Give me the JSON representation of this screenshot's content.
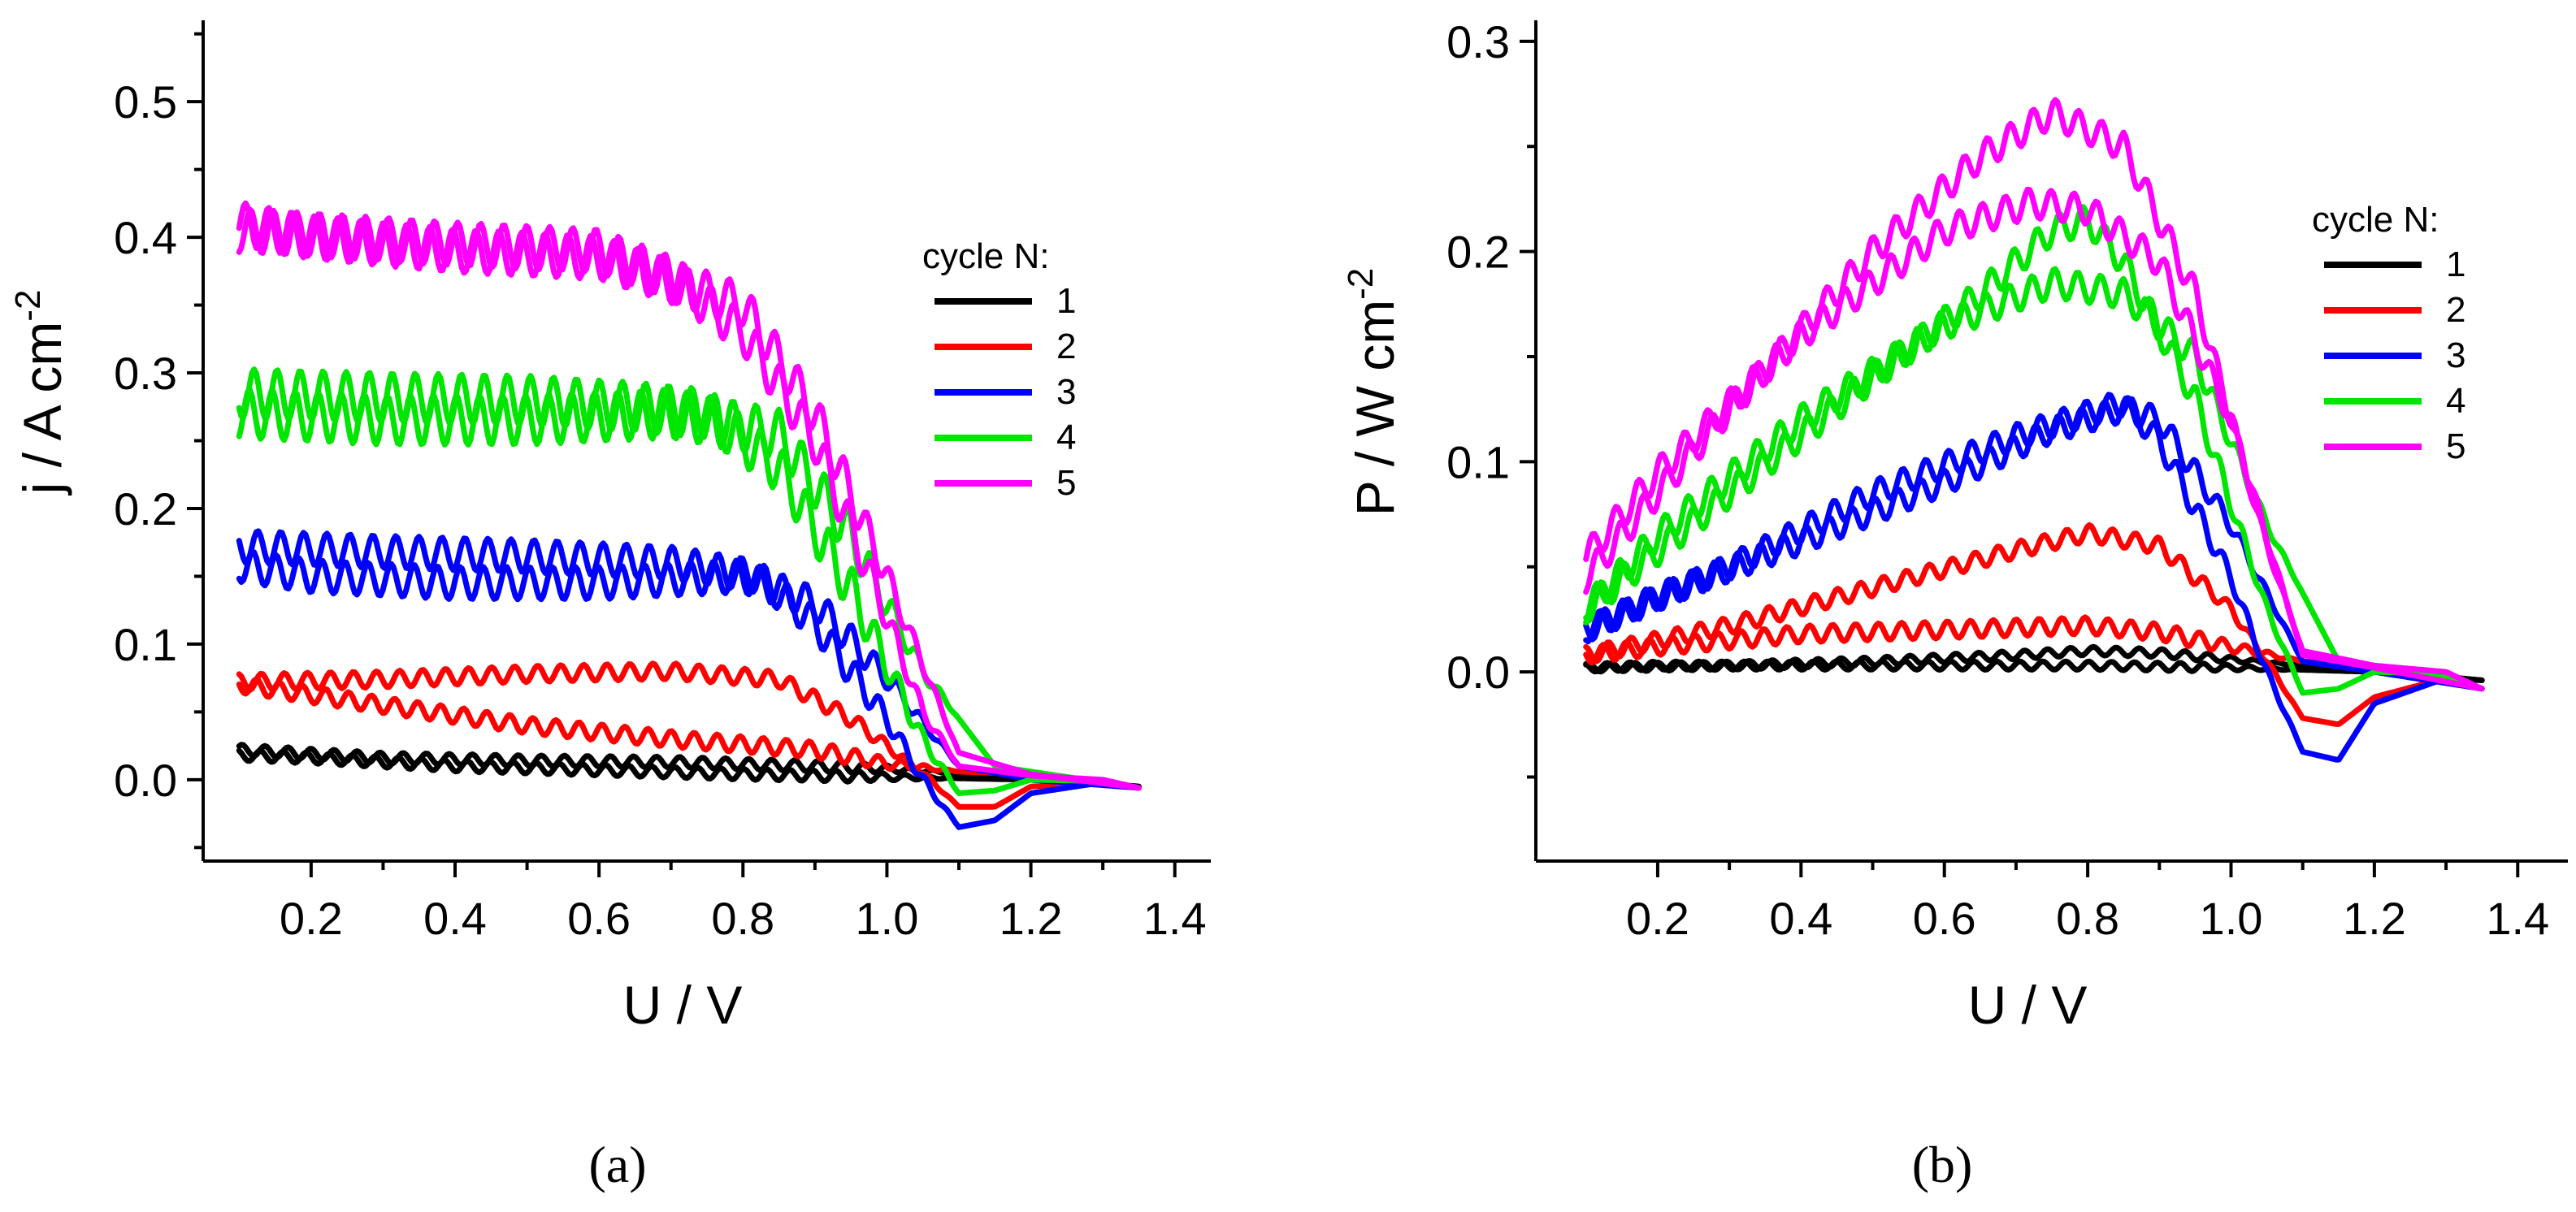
{
  "chart_data": [
    {
      "type": "line",
      "panel_label": "(a)",
      "xlabel": "U / V",
      "ylabel_main": "j / A cm",
      "ylabel_sup": "-2",
      "xlim": [
        0.05,
        1.45
      ],
      "ylim": [
        -0.06,
        0.56
      ],
      "xticks": [
        0.2,
        0.4,
        0.6,
        0.8,
        1.0,
        1.2,
        1.4
      ],
      "xtick_labels": [
        "0.2",
        "0.4",
        "0.6",
        "0.8",
        "1.0",
        "1.2",
        "1.4"
      ],
      "yticks": [
        0.0,
        0.1,
        0.2,
        0.3,
        0.4,
        0.5
      ],
      "ytick_labels": [
        "0.0",
        "0.1",
        "0.2",
        "0.3",
        "0.4",
        "0.5"
      ],
      "legend": {
        "title": "cycle N:",
        "position": "right"
      },
      "series": [
        {
          "name": "1",
          "color": "#000000",
          "wiggle": 0.004,
          "forward": [
            [
              0.1,
              0.022
            ],
            [
              0.3,
              0.016
            ],
            [
              0.5,
              0.014
            ],
            [
              0.7,
              0.013
            ],
            [
              0.9,
              0.01
            ],
            [
              1.0,
              0.008
            ],
            [
              1.1,
              0.005
            ],
            [
              1.2,
              0.002
            ],
            [
              1.35,
              -0.005
            ]
          ],
          "reverse": [
            [
              1.35,
              -0.005
            ],
            [
              1.2,
              0.0
            ],
            [
              1.0,
              0.002
            ],
            [
              0.8,
              0.004
            ],
            [
              0.6,
              0.007
            ],
            [
              0.4,
              0.01
            ],
            [
              0.2,
              0.016
            ],
            [
              0.1,
              0.018
            ]
          ]
        },
        {
          "name": "2",
          "color": "#ff0000",
          "wiggle": 0.006,
          "forward": [
            [
              0.1,
              0.072
            ],
            [
              0.3,
              0.074
            ],
            [
              0.5,
              0.078
            ],
            [
              0.7,
              0.08
            ],
            [
              0.85,
              0.074
            ],
            [
              0.95,
              0.045
            ],
            [
              1.05,
              0.005
            ],
            [
              1.1,
              -0.02
            ],
            [
              1.15,
              -0.02
            ],
            [
              1.2,
              -0.005
            ],
            [
              1.3,
              -0.003
            ],
            [
              1.35,
              -0.006
            ]
          ],
          "reverse": [
            [
              1.35,
              -0.006
            ],
            [
              1.2,
              0.004
            ],
            [
              1.1,
              0.006
            ],
            [
              1.0,
              0.012
            ],
            [
              0.9,
              0.022
            ],
            [
              0.7,
              0.03
            ],
            [
              0.5,
              0.04
            ],
            [
              0.3,
              0.055
            ],
            [
              0.1,
              0.07
            ]
          ]
        },
        {
          "name": "3",
          "color": "#0000ff",
          "wiggle": 0.012,
          "forward": [
            [
              0.1,
              0.172
            ],
            [
              0.3,
              0.168
            ],
            [
              0.5,
              0.165
            ],
            [
              0.7,
              0.16
            ],
            [
              0.82,
              0.15
            ],
            [
              0.9,
              0.115
            ],
            [
              1.0,
              0.045
            ],
            [
              1.05,
              0.0
            ],
            [
              1.1,
              -0.035
            ],
            [
              1.15,
              -0.03
            ],
            [
              1.2,
              -0.01
            ],
            [
              1.3,
              -0.002
            ],
            [
              1.35,
              -0.006
            ]
          ],
          "reverse": [
            [
              1.35,
              -0.006
            ],
            [
              1.2,
              0.0
            ],
            [
              1.1,
              0.01
            ],
            [
              1.0,
              0.075
            ],
            [
              0.9,
              0.13
            ],
            [
              0.8,
              0.15
            ],
            [
              0.6,
              0.145
            ],
            [
              0.4,
              0.145
            ],
            [
              0.2,
              0.15
            ],
            [
              0.1,
              0.158
            ]
          ]
        },
        {
          "name": "4",
          "color": "#00e600",
          "wiggle": 0.018,
          "forward": [
            [
              0.1,
              0.285
            ],
            [
              0.3,
              0.282
            ],
            [
              0.5,
              0.28
            ],
            [
              0.65,
              0.275
            ],
            [
              0.75,
              0.27
            ],
            [
              0.85,
              0.23
            ],
            [
              0.95,
              0.14
            ],
            [
              1.05,
              0.03
            ],
            [
              1.1,
              -0.01
            ],
            [
              1.15,
              -0.008
            ],
            [
              1.2,
              0.0
            ],
            [
              1.3,
              -0.001
            ],
            [
              1.35,
              -0.006
            ]
          ],
          "reverse": [
            [
              1.35,
              -0.006
            ],
            [
              1.25,
              0.002
            ],
            [
              1.15,
              0.01
            ],
            [
              1.05,
              0.08
            ],
            [
              0.95,
              0.18
            ],
            [
              0.85,
              0.255
            ],
            [
              0.7,
              0.27
            ],
            [
              0.5,
              0.265
            ],
            [
              0.3,
              0.265
            ],
            [
              0.1,
              0.27
            ]
          ]
        },
        {
          "name": "5",
          "color": "#ff00ff",
          "wiggle": 0.016,
          "forward": [
            [
              0.1,
              0.405
            ],
            [
              0.2,
              0.402
            ],
            [
              0.4,
              0.395
            ],
            [
              0.6,
              0.39
            ],
            [
              0.7,
              0.37
            ],
            [
              0.8,
              0.33
            ],
            [
              0.9,
              0.25
            ],
            [
              1.0,
              0.12
            ],
            [
              1.05,
              0.05
            ],
            [
              1.1,
              0.01
            ],
            [
              1.2,
              0.003
            ],
            [
              1.3,
              0.0
            ],
            [
              1.35,
              -0.006
            ]
          ],
          "reverse": [
            [
              1.35,
              -0.006
            ],
            [
              1.2,
              0.004
            ],
            [
              1.1,
              0.02
            ],
            [
              1.0,
              0.15
            ],
            [
              0.9,
              0.27
            ],
            [
              0.8,
              0.35
            ],
            [
              0.6,
              0.385
            ],
            [
              0.4,
              0.39
            ],
            [
              0.2,
              0.4
            ],
            [
              0.1,
              0.41
            ]
          ]
        }
      ]
    },
    {
      "type": "line",
      "panel_label": "(b)",
      "xlabel": "U / V",
      "ylabel_main": "P / W cm",
      "ylabel_sup": "-2",
      "xlim": [
        0.03,
        1.47
      ],
      "ylim": [
        -0.09,
        0.31
      ],
      "xticks": [
        0.2,
        0.4,
        0.6,
        0.8,
        1.0,
        1.2,
        1.4
      ],
      "xtick_labels": [
        "0.2",
        "0.4",
        "0.6",
        "0.8",
        "1.0",
        "1.2",
        "1.4"
      ],
      "yticks": [
        0.0,
        0.1,
        0.2,
        0.3
      ],
      "ytick_labels": [
        "0.0",
        "0.1",
        "0.2",
        "0.3"
      ],
      "legend": {
        "title": "cycle N:",
        "position": "right"
      },
      "series": [
        {
          "name": "1",
          "color": "#000000",
          "wiggle": 0.002,
          "forward": [
            [
              0.1,
              0.002
            ],
            [
              0.3,
              0.003
            ],
            [
              0.5,
              0.005
            ],
            [
              0.7,
              0.008
            ],
            [
              0.8,
              0.01
            ],
            [
              0.9,
              0.009
            ],
            [
              1.0,
              0.006
            ],
            [
              1.1,
              0.003
            ],
            [
              1.2,
              0.001
            ],
            [
              1.35,
              -0.004
            ]
          ],
          "reverse": [
            [
              1.35,
              -0.004
            ],
            [
              1.2,
              0.0
            ],
            [
              1.0,
              0.002
            ],
            [
              0.8,
              0.003
            ],
            [
              0.6,
              0.003
            ],
            [
              0.4,
              0.003
            ],
            [
              0.2,
              0.003
            ],
            [
              0.1,
              0.002
            ]
          ]
        },
        {
          "name": "2",
          "color": "#ff0000",
          "wiggle": 0.004,
          "forward": [
            [
              0.1,
              0.008
            ],
            [
              0.3,
              0.022
            ],
            [
              0.5,
              0.04
            ],
            [
              0.7,
              0.058
            ],
            [
              0.8,
              0.066
            ],
            [
              0.9,
              0.06
            ],
            [
              1.0,
              0.03
            ],
            [
              1.05,
              0.005
            ],
            [
              1.1,
              -0.022
            ],
            [
              1.15,
              -0.025
            ],
            [
              1.2,
              -0.012
            ],
            [
              1.3,
              -0.003
            ],
            [
              1.35,
              -0.008
            ]
          ],
          "reverse": [
            [
              1.35,
              -0.008
            ],
            [
              1.2,
              0.002
            ],
            [
              1.1,
              0.005
            ],
            [
              1.0,
              0.012
            ],
            [
              0.9,
              0.019
            ],
            [
              0.8,
              0.022
            ],
            [
              0.6,
              0.02
            ],
            [
              0.4,
              0.018
            ],
            [
              0.2,
              0.012
            ],
            [
              0.1,
              0.008
            ]
          ]
        },
        {
          "name": "3",
          "color": "#0000ff",
          "wiggle": 0.006,
          "forward": [
            [
              0.1,
              0.02
            ],
            [
              0.3,
              0.05
            ],
            [
              0.5,
              0.085
            ],
            [
              0.7,
              0.112
            ],
            [
              0.8,
              0.123
            ],
            [
              0.85,
              0.128
            ],
            [
              0.9,
              0.11
            ],
            [
              1.0,
              0.045
            ],
            [
              1.05,
              0.0
            ],
            [
              1.1,
              -0.038
            ],
            [
              1.15,
              -0.042
            ],
            [
              1.2,
              -0.015
            ],
            [
              1.3,
              -0.003
            ],
            [
              1.35,
              -0.008
            ]
          ],
          "reverse": [
            [
              1.35,
              -0.008
            ],
            [
              1.2,
              0.0
            ],
            [
              1.1,
              0.005
            ],
            [
              1.0,
              0.07
            ],
            [
              0.9,
              0.12
            ],
            [
              0.85,
              0.125
            ],
            [
              0.75,
              0.115
            ],
            [
              0.6,
              0.09
            ],
            [
              0.4,
              0.062
            ],
            [
              0.2,
              0.036
            ],
            [
              0.1,
              0.02
            ]
          ]
        },
        {
          "name": "4",
          "color": "#00e600",
          "wiggle": 0.007,
          "forward": [
            [
              0.1,
              0.03
            ],
            [
              0.3,
              0.085
            ],
            [
              0.5,
              0.14
            ],
            [
              0.65,
              0.18
            ],
            [
              0.75,
              0.21
            ],
            [
              0.8,
              0.215
            ],
            [
              0.85,
              0.195
            ],
            [
              0.95,
              0.13
            ],
            [
              1.05,
              0.03
            ],
            [
              1.1,
              -0.01
            ],
            [
              1.15,
              -0.008
            ],
            [
              1.2,
              0.0
            ],
            [
              1.3,
              -0.001
            ],
            [
              1.35,
              -0.008
            ]
          ],
          "reverse": [
            [
              1.35,
              -0.008
            ],
            [
              1.25,
              0.001
            ],
            [
              1.15,
              0.005
            ],
            [
              1.05,
              0.07
            ],
            [
              0.95,
              0.15
            ],
            [
              0.85,
              0.18
            ],
            [
              0.75,
              0.185
            ],
            [
              0.6,
              0.165
            ],
            [
              0.4,
              0.12
            ],
            [
              0.2,
              0.065
            ],
            [
              0.1,
              0.03
            ]
          ]
        },
        {
          "name": "5",
          "color": "#ff00ff",
          "wiggle": 0.007,
          "forward": [
            [
              0.1,
              0.045
            ],
            [
              0.3,
              0.125
            ],
            [
              0.5,
              0.2
            ],
            [
              0.65,
              0.245
            ],
            [
              0.75,
              0.266
            ],
            [
              0.85,
              0.25
            ],
            [
              0.95,
              0.18
            ],
            [
              1.05,
              0.06
            ],
            [
              1.1,
              0.01
            ],
            [
              1.2,
              0.003
            ],
            [
              1.3,
              0.0
            ],
            [
              1.35,
              -0.008
            ]
          ],
          "reverse": [
            [
              1.35,
              -0.008
            ],
            [
              1.2,
              0.002
            ],
            [
              1.1,
              0.008
            ],
            [
              1.0,
              0.12
            ],
            [
              0.9,
              0.195
            ],
            [
              0.8,
              0.22
            ],
            [
              0.72,
              0.223
            ],
            [
              0.6,
              0.21
            ],
            [
              0.4,
              0.16
            ],
            [
              0.2,
              0.095
            ],
            [
              0.1,
              0.055
            ]
          ]
        }
      ]
    }
  ]
}
